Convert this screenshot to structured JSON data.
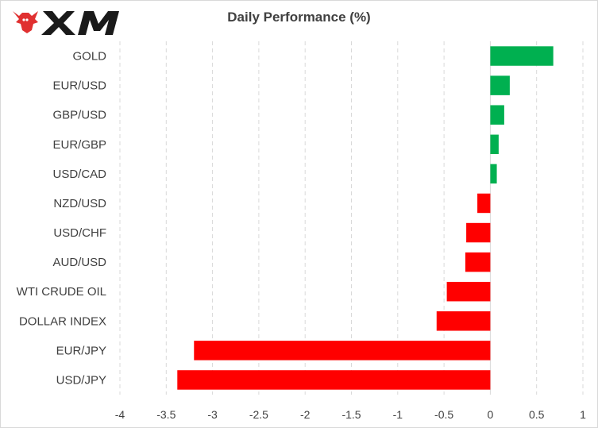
{
  "brand": {
    "name": "XM"
  },
  "colors": {
    "positive": "#00b050",
    "negative": "#ff0000",
    "grid": "#d9d9d9",
    "text": "#404040",
    "logo": "#e03030"
  },
  "chart_data": {
    "type": "bar",
    "orientation": "horizontal",
    "title": "Daily Performance  (%)",
    "categories": [
      "GOLD",
      "EUR/USD",
      "GBP/USD",
      "EUR/GBP",
      "USD/CAD",
      "NZD/USD",
      "USD/CHF",
      "AUD/USD",
      "WTI CRUDE OIL",
      "DOLLAR INDEX",
      "EUR/JPY",
      "USD/JPY"
    ],
    "values": [
      0.68,
      0.21,
      0.15,
      0.09,
      0.07,
      -0.14,
      -0.26,
      -0.27,
      -0.47,
      -0.58,
      -3.2,
      -3.38
    ],
    "xlim": [
      -4,
      1
    ],
    "xticks": [
      -4,
      -3.5,
      -3,
      -2.5,
      -2,
      -1.5,
      -1,
      -0.5,
      0,
      0.5,
      1
    ],
    "grid": "vertical",
    "legend": "none",
    "xlabel": "",
    "ylabel": ""
  }
}
